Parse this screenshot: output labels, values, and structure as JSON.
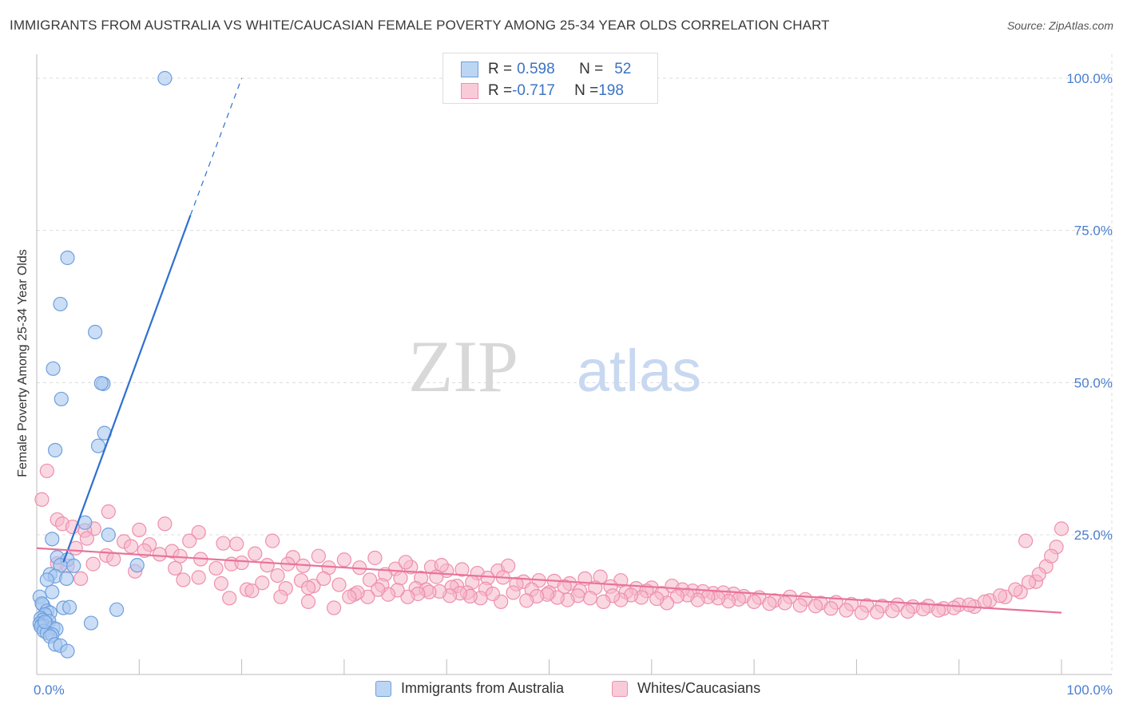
{
  "title": "IMMIGRANTS FROM AUSTRALIA VS WHITE/CAUCASIAN FEMALE POVERTY AMONG 25-34 YEAR OLDS CORRELATION CHART",
  "source": "Source: ZipAtlas.com",
  "watermark": {
    "zip": "ZIP",
    "atlas": "atlas"
  },
  "legend": {
    "blue": {
      "r_label": "R = ",
      "r_value": "0.598",
      "n_label": "N = ",
      "n_value": "52"
    },
    "pink": {
      "r_label": "R = ",
      "r_value": "-0.717",
      "n_label": "N = ",
      "n_value": "198"
    }
  },
  "colors": {
    "blue_fill": "#a8c8f0",
    "blue_stroke": "#6f9fdd",
    "blue_line": "#2f6fd0",
    "pink_fill": "#f5b8cb",
    "pink_stroke": "#ee8fae",
    "pink_line": "#e8739a",
    "grid": "#dcdcdc",
    "tick": "#4a7fd0"
  },
  "chart_data": {
    "type": "scatter",
    "title": "IMMIGRANTS FROM AUSTRALIA VS WHITE/CAUCASIAN FEMALE POVERTY AMONG 25-34 YEAR OLDS CORRELATION CHART",
    "xlabel": "",
    "ylabel": "Female Poverty Among 25-34 Year Olds",
    "xlim": [
      0,
      100
    ],
    "ylim": [
      0,
      100
    ],
    "x_tick_labels": [
      "0.0%",
      "100.0%"
    ],
    "y_tick_labels": [
      "25.0%",
      "50.0%",
      "75.0%",
      "100.0%"
    ],
    "y_ticks": [
      25,
      50,
      75,
      100
    ],
    "grid": true,
    "legend_position": "top-center",
    "series": [
      {
        "name": "Immigrants from Australia",
        "color": "#a8c8f0",
        "trend": {
          "x0": 2.6,
          "y0": 20.5,
          "x1": 15.0,
          "y1": 77.5,
          "dash_to_x": 20.0,
          "dash_to_y": 100.0
        },
        "points": [
          [
            12.5,
            100.0
          ],
          [
            3.0,
            70.5
          ],
          [
            2.3,
            62.9
          ],
          [
            5.7,
            58.3
          ],
          [
            1.6,
            52.3
          ],
          [
            6.5,
            49.8
          ],
          [
            6.3,
            49.9
          ],
          [
            2.4,
            47.3
          ],
          [
            6.6,
            41.7
          ],
          [
            6.0,
            39.6
          ],
          [
            1.8,
            38.9
          ],
          [
            4.7,
            27.0
          ],
          [
            7.0,
            25.0
          ],
          [
            1.5,
            24.3
          ],
          [
            2.0,
            21.3
          ],
          [
            3.0,
            20.9
          ],
          [
            2.3,
            20.0
          ],
          [
            3.6,
            19.9
          ],
          [
            9.8,
            20.0
          ],
          [
            1.3,
            18.5
          ],
          [
            1.8,
            18.2
          ],
          [
            2.9,
            17.8
          ],
          [
            1.0,
            17.6
          ],
          [
            1.5,
            15.6
          ],
          [
            0.3,
            14.8
          ],
          [
            0.6,
            13.5
          ],
          [
            0.5,
            13.7
          ],
          [
            2.6,
            13.0
          ],
          [
            3.2,
            13.1
          ],
          [
            7.8,
            12.7
          ],
          [
            1.0,
            12.5
          ],
          [
            1.3,
            12.2
          ],
          [
            0.8,
            11.9
          ],
          [
            0.4,
            11.3
          ],
          [
            0.6,
            11.0
          ],
          [
            1.2,
            10.8
          ],
          [
            0.9,
            10.5
          ],
          [
            0.3,
            10.4
          ],
          [
            0.5,
            10.2
          ],
          [
            0.7,
            10.0
          ],
          [
            0.4,
            9.9
          ],
          [
            5.3,
            10.5
          ],
          [
            1.6,
            9.7
          ],
          [
            1.9,
            9.5
          ],
          [
            0.7,
            9.2
          ],
          [
            1.0,
            8.9
          ],
          [
            1.5,
            8.6
          ],
          [
            1.3,
            8.3
          ],
          [
            1.8,
            7.0
          ],
          [
            2.3,
            6.8
          ],
          [
            3.0,
            5.9
          ],
          [
            0.8,
            10.7
          ]
        ]
      },
      {
        "name": "Whites/Caucasians",
        "color": "#f5b8cb",
        "trend": {
          "x0": 0.0,
          "y0": 22.8,
          "x1": 100.0,
          "y1": 12.2
        },
        "points": [
          [
            1.0,
            35.5
          ],
          [
            0.5,
            30.8
          ],
          [
            2.0,
            27.5
          ],
          [
            2.5,
            26.8
          ],
          [
            7.0,
            28.8
          ],
          [
            3.5,
            26.3
          ],
          [
            10.0,
            25.8
          ],
          [
            12.5,
            26.8
          ],
          [
            15.8,
            25.4
          ],
          [
            5.6,
            26.0
          ],
          [
            4.7,
            25.7
          ],
          [
            4.9,
            24.4
          ],
          [
            14.9,
            24.0
          ],
          [
            18.2,
            23.6
          ],
          [
            19.5,
            23.5
          ],
          [
            8.5,
            23.9
          ],
          [
            11.0,
            23.4
          ],
          [
            9.2,
            23.1
          ],
          [
            3.8,
            22.8
          ],
          [
            13.2,
            22.3
          ],
          [
            6.8,
            21.6
          ],
          [
            10.5,
            22.4
          ],
          [
            14.0,
            21.5
          ],
          [
            16.0,
            21.0
          ],
          [
            12.0,
            21.8
          ],
          [
            21.3,
            21.9
          ],
          [
            25.0,
            21.3
          ],
          [
            27.5,
            21.5
          ],
          [
            30.0,
            20.9
          ],
          [
            33.0,
            21.2
          ],
          [
            23.0,
            24.0
          ],
          [
            24.5,
            20.2
          ],
          [
            7.5,
            21.0
          ],
          [
            5.5,
            20.2
          ],
          [
            2.0,
            20.3
          ],
          [
            3.0,
            19.9
          ],
          [
            13.5,
            19.5
          ],
          [
            17.5,
            19.5
          ],
          [
            19.0,
            20.2
          ],
          [
            20.0,
            20.4
          ],
          [
            22.5,
            20.0
          ],
          [
            26.0,
            19.9
          ],
          [
            28.5,
            19.6
          ],
          [
            31.5,
            19.6
          ],
          [
            35.0,
            19.4
          ],
          [
            36.5,
            19.7
          ],
          [
            38.5,
            19.7
          ],
          [
            40.0,
            19.1
          ],
          [
            43.0,
            18.7
          ],
          [
            45.0,
            19.1
          ],
          [
            46.0,
            19.9
          ],
          [
            36.0,
            20.5
          ],
          [
            39.5,
            20.0
          ],
          [
            41.5,
            19.3
          ],
          [
            9.6,
            19.0
          ],
          [
            4.3,
            17.8
          ],
          [
            14.3,
            17.6
          ],
          [
            15.8,
            18.0
          ],
          [
            18.0,
            17.0
          ],
          [
            22.0,
            17.1
          ],
          [
            23.5,
            18.3
          ],
          [
            25.8,
            17.5
          ],
          [
            27.0,
            16.6
          ],
          [
            28.0,
            17.8
          ],
          [
            29.5,
            16.8
          ],
          [
            32.5,
            17.6
          ],
          [
            34.0,
            18.5
          ],
          [
            35.5,
            17.9
          ],
          [
            37.5,
            17.9
          ],
          [
            39.0,
            18.1
          ],
          [
            41.0,
            16.6
          ],
          [
            42.5,
            17.2
          ],
          [
            44.0,
            17.9
          ],
          [
            45.5,
            18.0
          ],
          [
            47.5,
            17.3
          ],
          [
            49.0,
            17.5
          ],
          [
            50.5,
            17.4
          ],
          [
            52.0,
            17.0
          ],
          [
            53.5,
            17.8
          ],
          [
            55.0,
            18.1
          ],
          [
            57.0,
            17.5
          ],
          [
            58.5,
            16.2
          ],
          [
            60.0,
            16.3
          ],
          [
            62.0,
            16.6
          ],
          [
            64.0,
            15.8
          ],
          [
            66.0,
            15.4
          ],
          [
            68.0,
            15.3
          ],
          [
            20.5,
            16.0
          ],
          [
            21.0,
            15.8
          ],
          [
            24.3,
            16.2
          ],
          [
            26.5,
            16.3
          ],
          [
            31.0,
            15.2
          ],
          [
            33.7,
            16.7
          ],
          [
            37.0,
            16.2
          ],
          [
            38.0,
            16.0
          ],
          [
            40.5,
            16.4
          ],
          [
            42.0,
            15.5
          ],
          [
            43.8,
            16.1
          ],
          [
            46.8,
            16.9
          ],
          [
            48.3,
            16.0
          ],
          [
            50.0,
            15.5
          ],
          [
            51.5,
            16.5
          ],
          [
            53.0,
            15.8
          ],
          [
            54.5,
            16.3
          ],
          [
            56.0,
            16.5
          ],
          [
            57.5,
            15.6
          ],
          [
            59.5,
            15.8
          ],
          [
            61.0,
            15.4
          ],
          [
            63.0,
            16.0
          ],
          [
            65.0,
            15.7
          ],
          [
            67.0,
            15.5
          ],
          [
            69.0,
            14.9
          ],
          [
            70.5,
            14.7
          ],
          [
            72.0,
            14.2
          ],
          [
            73.5,
            14.8
          ],
          [
            75.0,
            14.4
          ],
          [
            76.5,
            13.8
          ],
          [
            78.0,
            13.9
          ],
          [
            79.5,
            13.6
          ],
          [
            81.0,
            13.4
          ],
          [
            82.5,
            13.3
          ],
          [
            84.0,
            13.5
          ],
          [
            85.5,
            13.2
          ],
          [
            87.0,
            13.3
          ],
          [
            88.5,
            12.9
          ],
          [
            90.0,
            13.5
          ],
          [
            91.5,
            13.2
          ],
          [
            93.0,
            14.2
          ],
          [
            94.5,
            14.8
          ],
          [
            96.0,
            15.6
          ],
          [
            97.5,
            17.3
          ],
          [
            98.5,
            19.8
          ],
          [
            99.5,
            23.0
          ],
          [
            100.0,
            26.0
          ],
          [
            99.0,
            21.5
          ],
          [
            97.8,
            18.5
          ],
          [
            96.8,
            17.2
          ],
          [
            95.5,
            16.0
          ],
          [
            94.0,
            15.0
          ],
          [
            92.5,
            14.0
          ],
          [
            91.0,
            13.5
          ],
          [
            89.5,
            13.0
          ],
          [
            88.0,
            12.6
          ],
          [
            86.5,
            12.8
          ],
          [
            85.0,
            12.4
          ],
          [
            83.5,
            12.5
          ],
          [
            82.0,
            12.3
          ],
          [
            80.5,
            12.2
          ],
          [
            79.0,
            12.6
          ],
          [
            77.5,
            12.9
          ],
          [
            76.0,
            13.3
          ],
          [
            74.5,
            13.4
          ],
          [
            73.0,
            13.8
          ],
          [
            71.5,
            13.7
          ],
          [
            70.0,
            14.0
          ],
          [
            68.5,
            14.4
          ],
          [
            67.5,
            14.1
          ],
          [
            66.5,
            14.6
          ],
          [
            65.5,
            14.8
          ],
          [
            64.5,
            14.3
          ],
          [
            63.5,
            15.1
          ],
          [
            62.5,
            14.9
          ],
          [
            61.5,
            13.8
          ],
          [
            60.5,
            14.5
          ],
          [
            59.0,
            14.7
          ],
          [
            58.0,
            15.1
          ],
          [
            57.0,
            14.3
          ],
          [
            56.2,
            15.0
          ],
          [
            55.3,
            14.0
          ],
          [
            54.0,
            14.6
          ],
          [
            52.8,
            15.0
          ],
          [
            51.8,
            14.3
          ],
          [
            50.8,
            14.7
          ],
          [
            49.8,
            15.2
          ],
          [
            48.8,
            14.9
          ],
          [
            47.8,
            14.2
          ],
          [
            46.5,
            15.5
          ],
          [
            45.3,
            14.0
          ],
          [
            44.5,
            15.3
          ],
          [
            43.3,
            14.6
          ],
          [
            42.3,
            14.9
          ],
          [
            41.3,
            15.4
          ],
          [
            40.3,
            15.0
          ],
          [
            39.3,
            15.7
          ],
          [
            38.3,
            15.6
          ],
          [
            37.2,
            15.3
          ],
          [
            36.2,
            14.8
          ],
          [
            35.2,
            15.9
          ],
          [
            34.3,
            15.2
          ],
          [
            33.3,
            16.0
          ],
          [
            32.3,
            14.8
          ],
          [
            31.3,
            15.5
          ],
          [
            30.5,
            14.8
          ],
          [
            18.8,
            14.6
          ],
          [
            23.8,
            14.8
          ],
          [
            29.0,
            13.0
          ],
          [
            26.5,
            14.0
          ],
          [
            96.5,
            24.0
          ]
        ]
      }
    ]
  },
  "bottom_legend": {
    "blue_label": "Immigrants from Australia",
    "pink_label": "Whites/Caucasians"
  }
}
